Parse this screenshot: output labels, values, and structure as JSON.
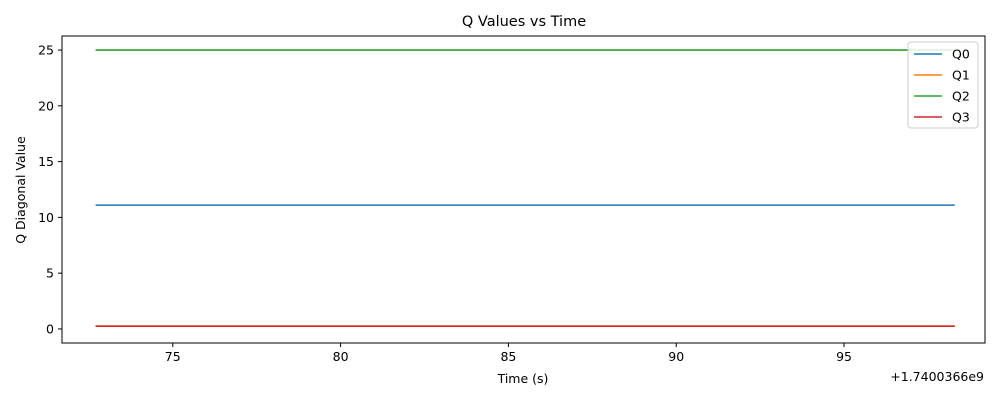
{
  "chart_data": {
    "type": "line",
    "title": "Q Values vs Time",
    "xlabel": "Time (s)",
    "ylabel": "Q Diagonal Value",
    "x_offset_label": "+1.7400366e9",
    "xlim": [
      71.7,
      99.2
    ],
    "ylim": [
      -1.26,
      26.26
    ],
    "x_ticks": [
      75,
      80,
      85,
      90,
      95
    ],
    "x_tick_labels": [
      "75",
      "80",
      "85",
      "90",
      "95"
    ],
    "y_ticks": [
      0,
      5,
      10,
      15,
      20,
      25
    ],
    "y_tick_labels": [
      "0",
      "5",
      "10",
      "15",
      "20",
      "25"
    ],
    "grid": false,
    "legend_position": "top-right",
    "x": [
      72.7,
      98.3
    ],
    "series": [
      {
        "name": "Q0",
        "color": "#1f77b4",
        "values": [
          11.1,
          11.1
        ]
      },
      {
        "name": "Q1",
        "color": "#ff7f0e",
        "values": [
          0.25,
          0.25
        ]
      },
      {
        "name": "Q2",
        "color": "#2ca02c",
        "values": [
          25.0,
          25.0
        ]
      },
      {
        "name": "Q3",
        "color": "#d62728",
        "values": [
          0.25,
          0.25
        ]
      }
    ]
  }
}
